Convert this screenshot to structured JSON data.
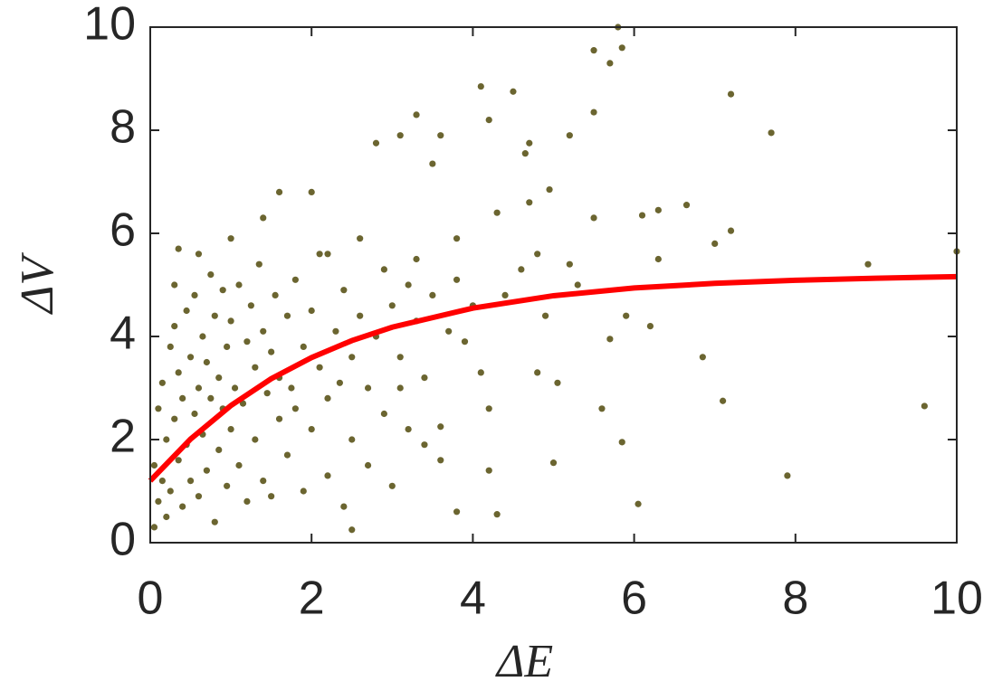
{
  "chart_data": {
    "type": "scatter",
    "x_label": "ΔE",
    "y_label": "ΔV",
    "xlim": [
      0,
      10
    ],
    "ylim": [
      0,
      10
    ],
    "xticks": [
      0,
      2,
      4,
      6,
      8,
      10
    ],
    "yticks": [
      0,
      2,
      4,
      6,
      8,
      10
    ],
    "grid": false,
    "series": [
      {
        "type": "scatter",
        "color": "#6b6530",
        "x": [
          5.8,
          5.5,
          5.85,
          5.7,
          4.1,
          4.5,
          7.2,
          4.2,
          5.5,
          3.3,
          7.7,
          5.2,
          4.7,
          4.65,
          3.6,
          3.1,
          2.8,
          3.5,
          2.0,
          1.6,
          4.95,
          4.7,
          6.65,
          6.3,
          6.1,
          5.5,
          7.2,
          7.0,
          10,
          8.9,
          6.3,
          5.2,
          4.8,
          6.2,
          5.9,
          7.1,
          9.6,
          6.85,
          5.7,
          5.05,
          5.6,
          5.85,
          7.9,
          6.05,
          5.0,
          4.3,
          4.2,
          3.8,
          2.5,
          3.4,
          3.6,
          4.1,
          4.8,
          3.1,
          2.9,
          3.3,
          3.8,
          4.3,
          2.6,
          2.2,
          1.4,
          1.0,
          0.35,
          0.6,
          0.3,
          0.05,
          0.05,
          0.1,
          0.1,
          0.15,
          0.15,
          0.2,
          0.2,
          0.25,
          0.25,
          0.3,
          0.3,
          0.35,
          0.35,
          0.4,
          0.4,
          0.45,
          0.45,
          0.5,
          0.5,
          0.55,
          0.55,
          0.6,
          0.6,
          0.65,
          0.65,
          0.7,
          0.7,
          0.75,
          0.75,
          0.8,
          0.8,
          0.85,
          0.85,
          0.9,
          0.9,
          0.95,
          0.95,
          1.0,
          1.0,
          1.05,
          1.1,
          1.1,
          1.15,
          1.2,
          1.2,
          1.25,
          1.3,
          1.3,
          1.35,
          1.4,
          1.4,
          1.45,
          1.5,
          1.5,
          1.55,
          1.6,
          1.6,
          1.7,
          1.7,
          1.75,
          1.8,
          1.8,
          1.9,
          1.9,
          2.0,
          2.0,
          2.1,
          2.1,
          2.2,
          2.2,
          2.3,
          2.35,
          2.4,
          2.4,
          2.5,
          2.5,
          2.6,
          2.7,
          2.7,
          2.8,
          2.9,
          3.0,
          3.0,
          3.1,
          3.2,
          3.2,
          3.3,
          3.4,
          3.5,
          3.6,
          3.7,
          3.8,
          3.9,
          4.0,
          4.2,
          4.4,
          4.6,
          4.9,
          5.3
        ],
        "values": [
          10,
          9.55,
          9.6,
          9.3,
          8.85,
          8.75,
          8.7,
          8.2,
          8.35,
          8.3,
          7.95,
          7.9,
          7.75,
          7.55,
          7.9,
          7.9,
          7.75,
          7.35,
          6.8,
          6.8,
          6.85,
          6.6,
          6.55,
          6.45,
          6.35,
          6.3,
          6.05,
          5.8,
          5.65,
          5.4,
          5.5,
          5.4,
          5.6,
          4.2,
          4.4,
          2.75,
          2.65,
          3.6,
          3.95,
          3.1,
          2.6,
          1.95,
          1.3,
          0.75,
          1.55,
          0.55,
          1.4,
          0.6,
          0.25,
          1.9,
          2.25,
          3.3,
          3.3,
          3.0,
          5.3,
          5.5,
          5.9,
          6.4,
          5.9,
          5.6,
          6.3,
          5.9,
          5.7,
          5.6,
          5.0,
          0.3,
          1.5,
          0.8,
          2.6,
          1.2,
          3.1,
          0.5,
          2.0,
          3.8,
          1.0,
          2.4,
          4.2,
          1.6,
          3.3,
          0.7,
          2.8,
          4.5,
          1.9,
          3.6,
          1.2,
          2.5,
          4.8,
          0.9,
          3.0,
          2.1,
          4.0,
          1.4,
          3.5,
          2.8,
          5.2,
          0.4,
          4.4,
          1.8,
          3.2,
          2.6,
          4.9,
          1.1,
          3.8,
          2.2,
          4.3,
          3.0,
          1.5,
          5.0,
          2.7,
          3.9,
          0.8,
          4.6,
          2.0,
          3.4,
          5.4,
          1.2,
          4.1,
          2.9,
          3.7,
          0.9,
          4.8,
          2.4,
          3.2,
          4.4,
          1.7,
          3.0,
          5.1,
          2.6,
          3.8,
          1.0,
          4.5,
          2.2,
          3.4,
          5.6,
          2.8,
          1.3,
          4.1,
          3.1,
          4.9,
          0.7,
          3.6,
          2.0,
          4.4,
          3.0,
          1.5,
          4.0,
          2.5,
          4.6,
          1.1,
          3.6,
          5.0,
          2.2,
          4.3,
          3.2,
          4.8,
          1.6,
          4.1,
          5.1,
          3.9,
          4.6,
          2.6,
          4.8,
          5.3,
          4.4,
          5.0
        ]
      },
      {
        "type": "line",
        "color": "#ff0000",
        "x": [
          0,
          0.5,
          1,
          1.5,
          2,
          2.5,
          3,
          4,
          5,
          6,
          7,
          8,
          9,
          10
        ],
        "values": [
          1.2,
          2.01,
          2.66,
          3.18,
          3.59,
          3.92,
          4.18,
          4.55,
          4.79,
          4.94,
          5.03,
          5.09,
          5.13,
          5.16
        ]
      }
    ]
  }
}
